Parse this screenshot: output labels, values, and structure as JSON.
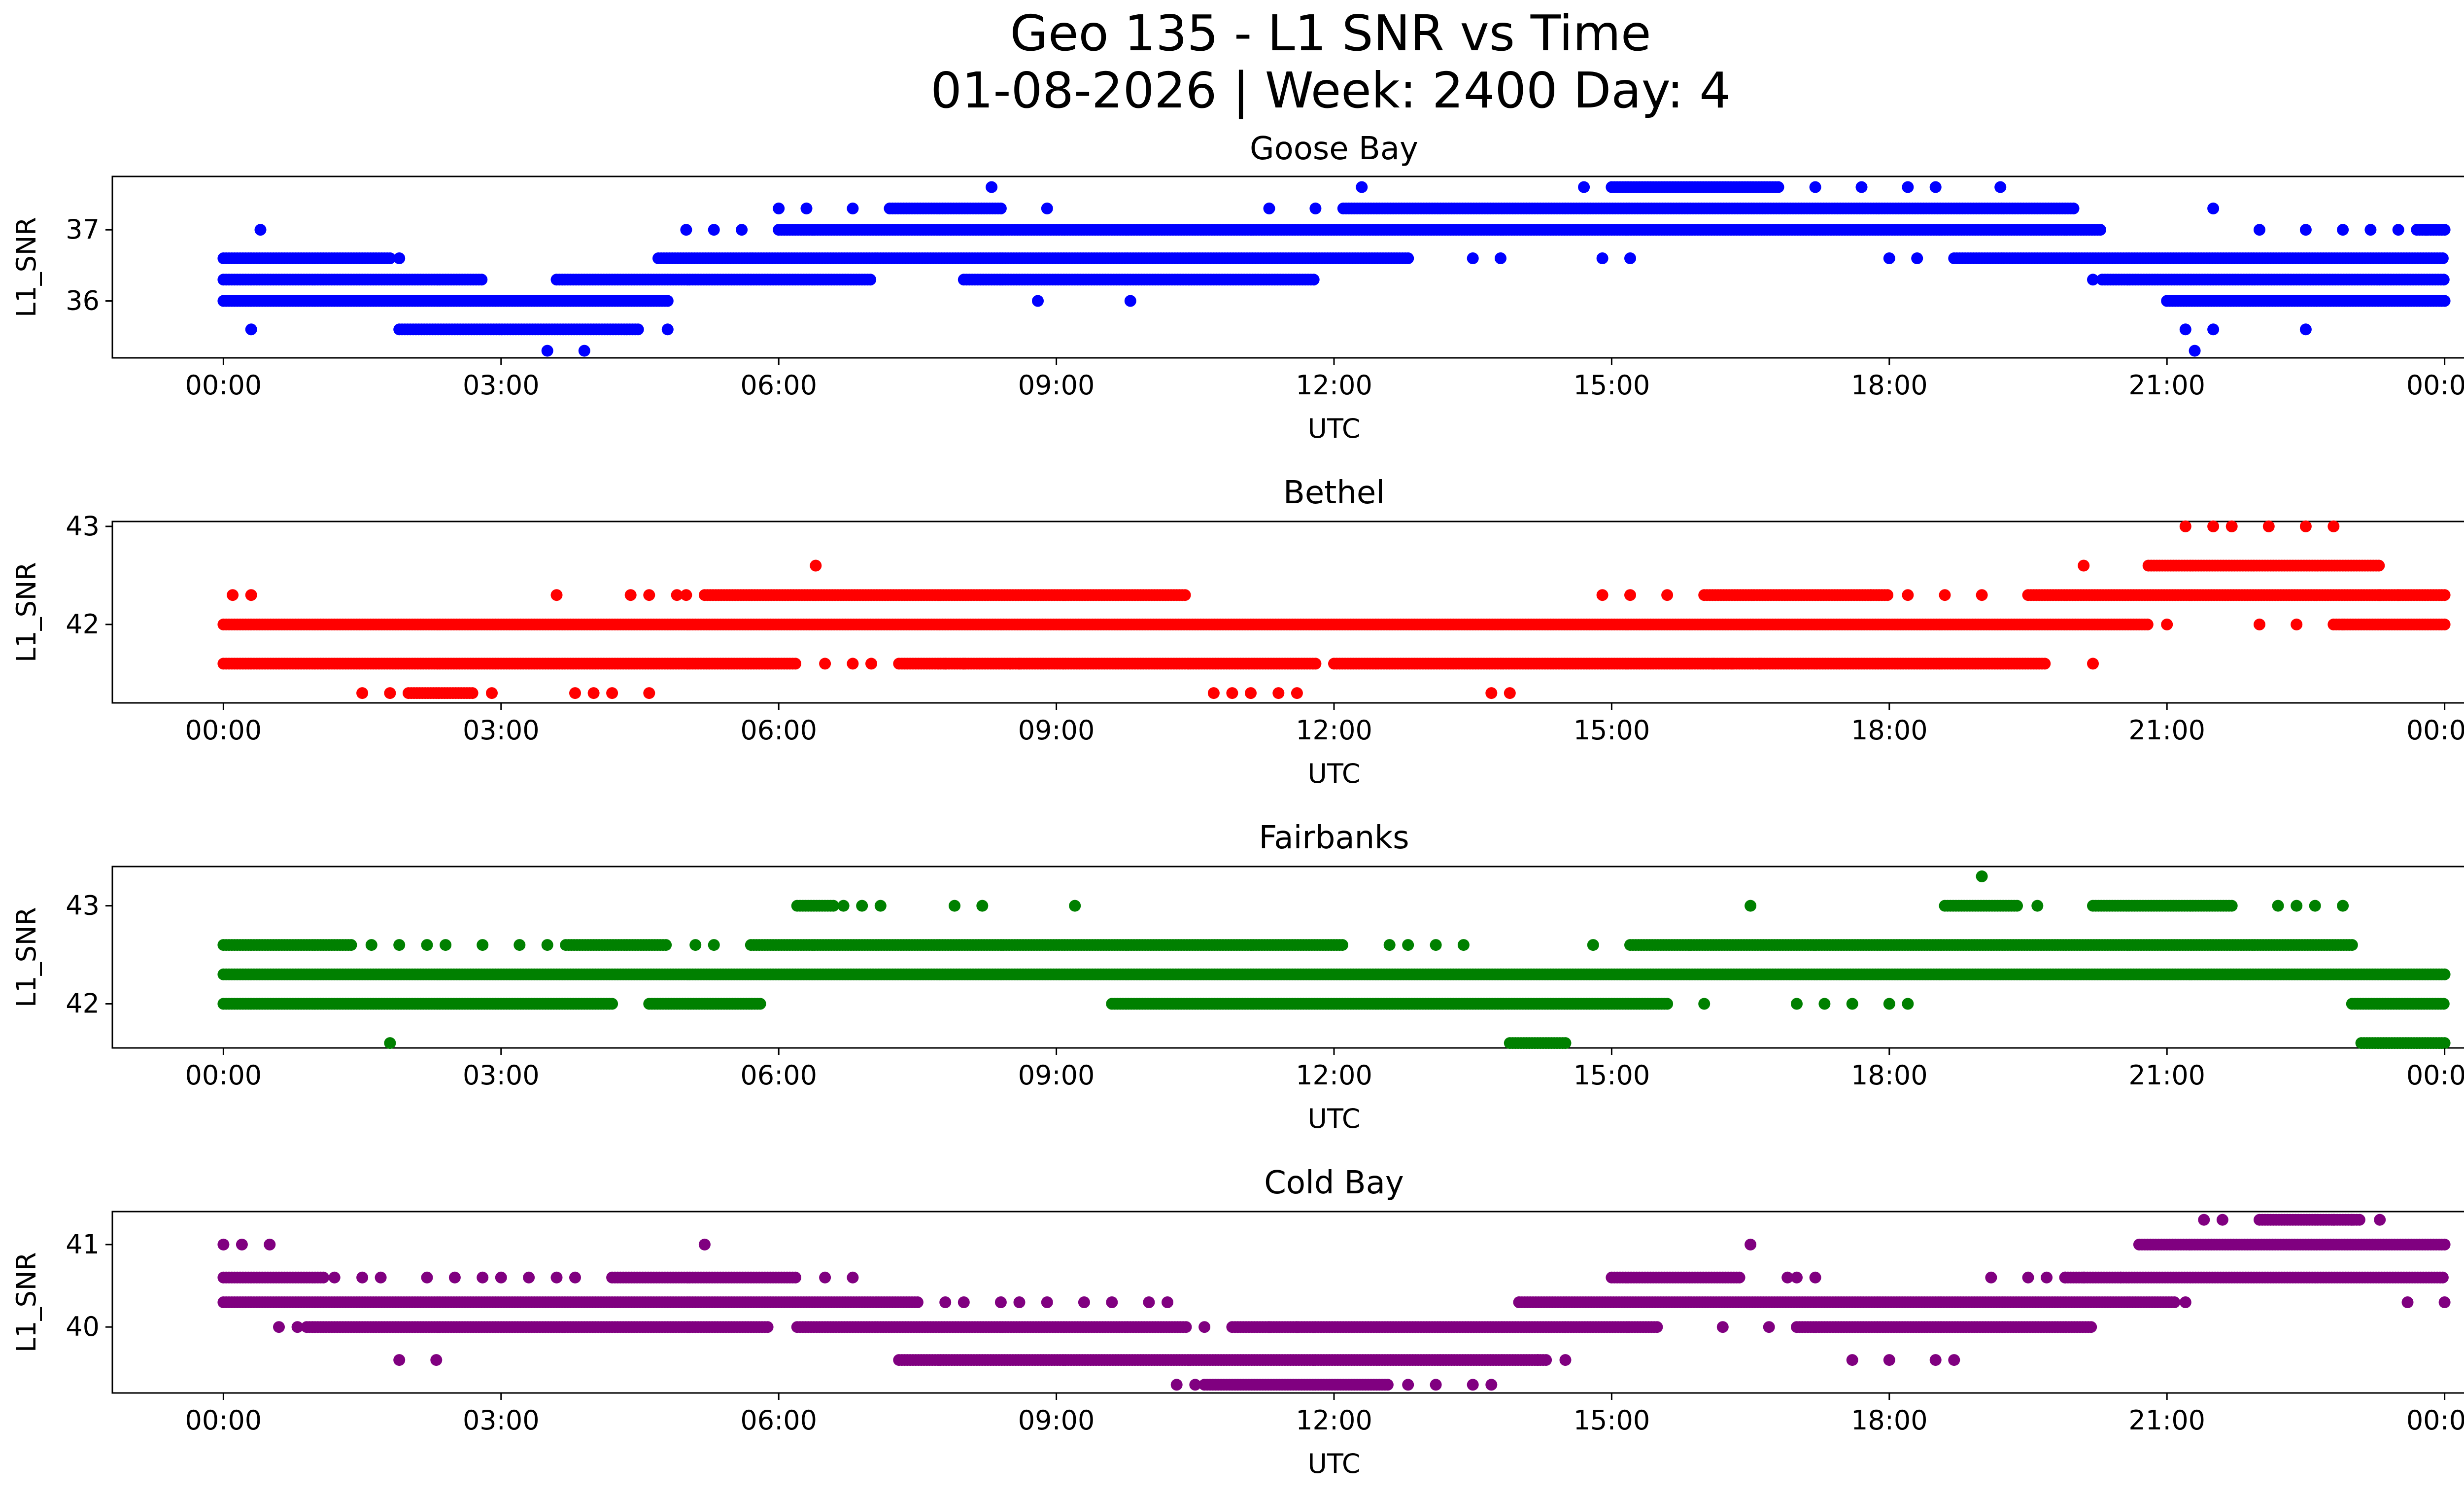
{
  "figure": {
    "title_line1": "Geo 135 - L1 SNR vs Time",
    "title_line2": "01-08-2026 | Week: 2400 Day: 4"
  },
  "chart_data": [
    {
      "type": "scatter",
      "title": "Goose Bay",
      "xlabel": "UTC",
      "ylabel": "L1_SNR",
      "color": "#0000ff",
      "xlim": [
        -1.2,
        25.2
      ],
      "ylim": [
        35.2,
        37.75
      ],
      "x_ticks": [
        0,
        3,
        6,
        9,
        12,
        15,
        18,
        21,
        24
      ],
      "x_tick_labels": [
        "00:00",
        "03:00",
        "06:00",
        "09:00",
        "12:00",
        "15:00",
        "18:00",
        "21:00",
        "00:00"
      ],
      "y_ticks": [
        36,
        37
      ],
      "y_tick_labels": [
        "36",
        "37"
      ],
      "bands": [
        {
          "y": 37.0,
          "segments": [
            [
              6.0,
              20.3
            ],
            [
              23.7,
              24.0
            ]
          ]
        },
        {
          "y": 36.6,
          "segments": [
            [
              0.0,
              1.8
            ],
            [
              4.7,
              12.8
            ],
            [
              18.7,
              24.0
            ]
          ]
        },
        {
          "y": 36.3,
          "segments": [
            [
              0.0,
              2.8
            ],
            [
              3.6,
              7.0
            ],
            [
              8.0,
              11.8
            ],
            [
              20.3,
              24.0
            ]
          ]
        },
        {
          "y": 36.0,
          "segments": [
            [
              0.0,
              4.8
            ],
            [
              21.0,
              24.0
            ]
          ]
        },
        {
          "y": 35.6,
          "segments": [
            [
              1.9,
              4.5
            ]
          ]
        },
        {
          "y": 37.3,
          "segments": [
            [
              7.2,
              8.4
            ],
            [
              12.1,
              20.0
            ]
          ]
        },
        {
          "y": 37.6,
          "segments": [
            [
              15.0,
              16.8
            ]
          ]
        }
      ],
      "points": [
        [
          0.3,
          35.6
        ],
        [
          0.4,
          37.0
        ],
        [
          1.9,
          36.6
        ],
        [
          3.5,
          35.3
        ],
        [
          3.9,
          35.3
        ],
        [
          4.8,
          35.6
        ],
        [
          5.0,
          37.0
        ],
        [
          5.3,
          37.0
        ],
        [
          5.6,
          37.0
        ],
        [
          6.0,
          37.3
        ],
        [
          6.3,
          37.3
        ],
        [
          6.8,
          37.3
        ],
        [
          8.3,
          37.6
        ],
        [
          8.8,
          36.0
        ],
        [
          8.9,
          37.3
        ],
        [
          9.8,
          36.0
        ],
        [
          11.3,
          37.3
        ],
        [
          11.8,
          37.3
        ],
        [
          12.3,
          37.6
        ],
        [
          13.5,
          36.6
        ],
        [
          13.8,
          36.6
        ],
        [
          14.7,
          37.6
        ],
        [
          14.9,
          36.6
        ],
        [
          15.2,
          36.6
        ],
        [
          17.2,
          37.6
        ],
        [
          17.7,
          37.6
        ],
        [
          18.2,
          37.6
        ],
        [
          18.5,
          37.6
        ],
        [
          19.2,
          37.6
        ],
        [
          18.0,
          36.6
        ],
        [
          18.3,
          36.6
        ],
        [
          20.2,
          36.3
        ],
        [
          21.2,
          35.6
        ],
        [
          21.3,
          35.3
        ],
        [
          21.5,
          35.6
        ],
        [
          21.5,
          37.3
        ],
        [
          22.0,
          37.0
        ],
        [
          22.5,
          37.0
        ],
        [
          22.5,
          35.6
        ],
        [
          22.9,
          37.0
        ],
        [
          23.2,
          37.0
        ],
        [
          23.5,
          37.0
        ],
        [
          23.8,
          37.0
        ]
      ]
    },
    {
      "type": "scatter",
      "title": "Bethel",
      "xlabel": "UTC",
      "ylabel": "L1_SNR",
      "color": "#ff0000",
      "xlim": [
        -1.2,
        25.2
      ],
      "ylim": [
        41.2,
        43.05
      ],
      "x_ticks": [
        0,
        3,
        6,
        9,
        12,
        15,
        18,
        21,
        24
      ],
      "x_tick_labels": [
        "00:00",
        "03:00",
        "06:00",
        "09:00",
        "12:00",
        "15:00",
        "18:00",
        "21:00",
        "00:00"
      ],
      "y_ticks": [
        42,
        43
      ],
      "y_tick_labels": [
        "42",
        "43"
      ],
      "bands": [
        {
          "y": 42.0,
          "segments": [
            [
              0.0,
              20.8
            ],
            [
              22.8,
              24.0
            ]
          ]
        },
        {
          "y": 41.6,
          "segments": [
            [
              0.0,
              6.2
            ],
            [
              7.3,
              11.8
            ],
            [
              12.0,
              19.7
            ]
          ]
        },
        {
          "y": 42.3,
          "segments": [
            [
              5.2,
              10.4
            ],
            [
              16.0,
              18.0
            ],
            [
              19.5,
              24.0
            ]
          ]
        },
        {
          "y": 42.6,
          "segments": [
            [
              20.8,
              23.3
            ]
          ]
        },
        {
          "y": 41.3,
          "segments": [
            [
              2.0,
              2.7
            ]
          ]
        }
      ],
      "points": [
        [
          0.1,
          42.3
        ],
        [
          0.3,
          42.3
        ],
        [
          1.5,
          41.3
        ],
        [
          1.8,
          41.3
        ],
        [
          2.9,
          41.3
        ],
        [
          3.6,
          42.3
        ],
        [
          3.8,
          41.3
        ],
        [
          4.0,
          41.3
        ],
        [
          4.2,
          41.3
        ],
        [
          4.4,
          42.3
        ],
        [
          4.6,
          42.3
        ],
        [
          4.6,
          41.3
        ],
        [
          4.9,
          42.3
        ],
        [
          5.0,
          42.3
        ],
        [
          6.4,
          42.6
        ],
        [
          6.5,
          41.6
        ],
        [
          6.8,
          41.6
        ],
        [
          7.0,
          41.6
        ],
        [
          7.8,
          41.6
        ],
        [
          8.0,
          41.6
        ],
        [
          8.5,
          41.6
        ],
        [
          8.6,
          41.6
        ],
        [
          10.7,
          41.3
        ],
        [
          10.9,
          41.3
        ],
        [
          11.1,
          41.3
        ],
        [
          11.4,
          41.3
        ],
        [
          11.6,
          41.3
        ],
        [
          13.7,
          41.3
        ],
        [
          13.9,
          41.3
        ],
        [
          14.9,
          42.3
        ],
        [
          15.2,
          42.3
        ],
        [
          15.6,
          42.3
        ],
        [
          16.1,
          41.6
        ],
        [
          16.3,
          41.6
        ],
        [
          16.6,
          41.6
        ],
        [
          17.8,
          42.3
        ],
        [
          18.2,
          42.3
        ],
        [
          18.6,
          42.3
        ],
        [
          19.0,
          42.3
        ],
        [
          20.2,
          41.6
        ],
        [
          20.1,
          42.6
        ],
        [
          21.0,
          42.0
        ],
        [
          21.2,
          43.0
        ],
        [
          21.5,
          43.0
        ],
        [
          21.7,
          43.0
        ],
        [
          22.0,
          42.0
        ],
        [
          22.1,
          43.0
        ],
        [
          22.4,
          42.0
        ],
        [
          22.5,
          43.0
        ],
        [
          22.9,
          42.0
        ],
        [
          22.8,
          43.0
        ],
        [
          23.3,
          42.3
        ],
        [
          23.5,
          42.3
        ]
      ]
    },
    {
      "type": "scatter",
      "title": "Fairbanks",
      "xlabel": "UTC",
      "ylabel": "L1_SNR",
      "color": "#008000",
      "xlim": [
        -1.2,
        25.2
      ],
      "ylim": [
        41.55,
        43.4
      ],
      "x_ticks": [
        0,
        3,
        6,
        9,
        12,
        15,
        18,
        21,
        24
      ],
      "x_tick_labels": [
        "00:00",
        "03:00",
        "06:00",
        "09:00",
        "12:00",
        "15:00",
        "18:00",
        "21:00",
        "00:00"
      ],
      "y_ticks": [
        42,
        43
      ],
      "y_tick_labels": [
        "42",
        "43"
      ],
      "bands": [
        {
          "y": 42.3,
          "segments": [
            [
              0.0,
              24.0
            ]
          ]
        },
        {
          "y": 42.6,
          "segments": [
            [
              0.0,
              1.4
            ],
            [
              3.7,
              4.8
            ],
            [
              5.7,
              12.1
            ],
            [
              15.2,
              23.0
            ]
          ]
        },
        {
          "y": 42.0,
          "segments": [
            [
              0.0,
              4.2
            ],
            [
              4.6,
              5.8
            ],
            [
              9.6,
              15.6
            ],
            [
              23.0,
              24.0
            ]
          ]
        },
        {
          "y": 43.0,
          "segments": [
            [
              6.2,
              6.6
            ],
            [
              18.6,
              19.4
            ],
            [
              20.2,
              21.7
            ]
          ]
        },
        {
          "y": 41.6,
          "segments": [
            [
              13.9,
              14.5
            ],
            [
              23.1,
              24.0
            ]
          ]
        }
      ],
      "points": [
        [
          1.6,
          42.6
        ],
        [
          1.8,
          41.6
        ],
        [
          1.9,
          42.6
        ],
        [
          2.2,
          42.6
        ],
        [
          2.4,
          42.6
        ],
        [
          2.8,
          42.6
        ],
        [
          3.2,
          42.6
        ],
        [
          3.5,
          42.6
        ],
        [
          5.1,
          42.6
        ],
        [
          5.3,
          42.6
        ],
        [
          6.7,
          43.0
        ],
        [
          6.9,
          43.0
        ],
        [
          7.1,
          43.0
        ],
        [
          7.9,
          43.0
        ],
        [
          8.2,
          43.0
        ],
        [
          9.2,
          43.0
        ],
        [
          12.6,
          42.6
        ],
        [
          12.8,
          42.6
        ],
        [
          13.1,
          42.6
        ],
        [
          13.4,
          42.6
        ],
        [
          14.8,
          42.6
        ],
        [
          16.0,
          42.0
        ],
        [
          16.5,
          43.0
        ],
        [
          17.0,
          42.0
        ],
        [
          17.3,
          42.0
        ],
        [
          17.6,
          42.0
        ],
        [
          18.0,
          42.0
        ],
        [
          18.2,
          42.0
        ],
        [
          19.0,
          43.3
        ],
        [
          19.6,
          43.0
        ],
        [
          22.2,
          43.0
        ],
        [
          22.4,
          43.0
        ],
        [
          22.6,
          43.0
        ],
        [
          22.9,
          43.0
        ]
      ]
    },
    {
      "type": "scatter",
      "title": "Cold Bay",
      "xlabel": "UTC",
      "ylabel": "L1_SNR",
      "color": "#800080",
      "xlim": [
        -1.2,
        25.2
      ],
      "ylim": [
        39.2,
        41.4
      ],
      "x_ticks": [
        0,
        3,
        6,
        9,
        12,
        15,
        18,
        21,
        24
      ],
      "x_tick_labels": [
        "00:00",
        "03:00",
        "06:00",
        "09:00",
        "12:00",
        "15:00",
        "18:00",
        "21:00",
        "00:00"
      ],
      "y_ticks": [
        40,
        41
      ],
      "y_tick_labels": [
        "40",
        "41"
      ],
      "bands": [
        {
          "y": 40.3,
          "segments": [
            [
              0.0,
              7.5
            ],
            [
              14.0,
              21.1
            ]
          ]
        },
        {
          "y": 40.0,
          "segments": [
            [
              0.9,
              5.9
            ],
            [
              6.2,
              10.4
            ],
            [
              10.9,
              15.5
            ],
            [
              17.0,
              20.2
            ]
          ]
        },
        {
          "y": 40.6,
          "segments": [
            [
              0.0,
              1.1
            ],
            [
              4.2,
              6.2
            ],
            [
              15.0,
              16.4
            ],
            [
              19.9,
              24.0
            ]
          ]
        },
        {
          "y": 39.6,
          "segments": [
            [
              7.3,
              14.3
            ]
          ]
        },
        {
          "y": 39.3,
          "segments": [
            [
              10.6,
              12.6
            ]
          ]
        },
        {
          "y": 41.0,
          "segments": [
            [
              20.7,
              24.0
            ]
          ]
        },
        {
          "y": 41.3,
          "segments": [
            [
              22.0,
              23.1
            ]
          ]
        }
      ],
      "points": [
        [
          0.0,
          41.0
        ],
        [
          0.2,
          41.0
        ],
        [
          0.5,
          41.0
        ],
        [
          0.6,
          40.0
        ],
        [
          0.8,
          40.0
        ],
        [
          1.2,
          40.6
        ],
        [
          1.5,
          40.6
        ],
        [
          1.7,
          40.6
        ],
        [
          1.9,
          39.6
        ],
        [
          2.2,
          40.6
        ],
        [
          2.3,
          39.6
        ],
        [
          2.5,
          40.6
        ],
        [
          2.8,
          40.6
        ],
        [
          3.0,
          40.6
        ],
        [
          3.3,
          40.6
        ],
        [
          3.6,
          40.6
        ],
        [
          3.8,
          40.6
        ],
        [
          5.2,
          41.0
        ],
        [
          6.5,
          40.6
        ],
        [
          6.8,
          40.6
        ],
        [
          7.8,
          40.3
        ],
        [
          8.0,
          40.3
        ],
        [
          8.4,
          40.3
        ],
        [
          8.6,
          40.3
        ],
        [
          8.9,
          40.3
        ],
        [
          9.3,
          40.3
        ],
        [
          9.6,
          40.3
        ],
        [
          10.0,
          40.3
        ],
        [
          10.2,
          40.3
        ],
        [
          10.3,
          39.3
        ],
        [
          10.5,
          39.3
        ],
        [
          10.6,
          40.0
        ],
        [
          11.3,
          40.0
        ],
        [
          11.6,
          40.0
        ],
        [
          12.8,
          39.3
        ],
        [
          13.1,
          39.3
        ],
        [
          13.5,
          39.3
        ],
        [
          13.7,
          39.3
        ],
        [
          14.2,
          39.6
        ],
        [
          14.5,
          39.6
        ],
        [
          14.0,
          40.3
        ],
        [
          16.2,
          40.0
        ],
        [
          16.5,
          41.0
        ],
        [
          16.7,
          40.0
        ],
        [
          16.9,
          40.6
        ],
        [
          17.0,
          40.6
        ],
        [
          17.2,
          40.6
        ],
        [
          17.6,
          39.6
        ],
        [
          18.0,
          39.6
        ],
        [
          18.5,
          39.6
        ],
        [
          18.7,
          39.6
        ],
        [
          19.1,
          40.6
        ],
        [
          19.5,
          40.6
        ],
        [
          19.7,
          40.6
        ],
        [
          19.9,
          40.6
        ],
        [
          20.1,
          40.6
        ],
        [
          20.5,
          40.6
        ],
        [
          21.2,
          40.3
        ],
        [
          21.4,
          41.3
        ],
        [
          21.6,
          41.3
        ],
        [
          22.8,
          41.3
        ],
        [
          23.0,
          41.3
        ],
        [
          23.3,
          41.3
        ],
        [
          23.6,
          40.3
        ],
        [
          24.0,
          40.3
        ]
      ]
    }
  ]
}
